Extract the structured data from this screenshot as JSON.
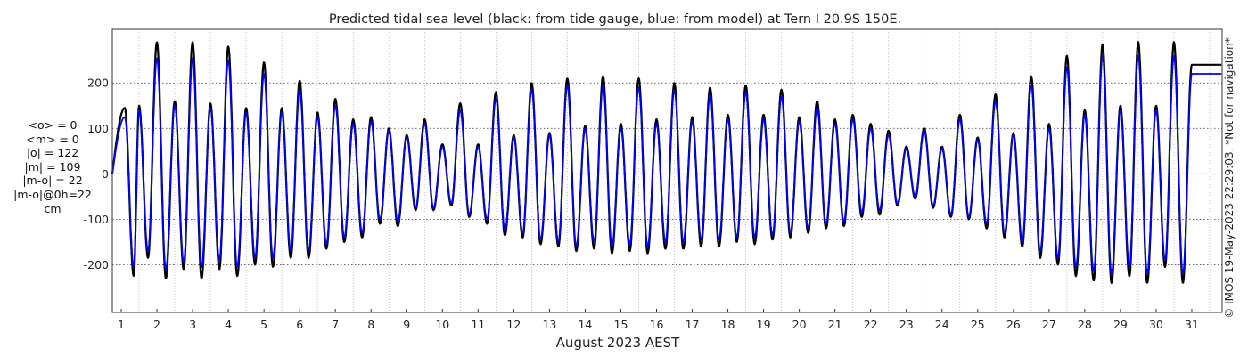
{
  "chart_data": {
    "type": "line",
    "title": "Predicted tidal sea level (black: from tide gauge, blue: from model) at Tern I 20.9S 150E.",
    "xlabel": "August 2023 AEST",
    "ylabel": "",
    "units": "cm",
    "xlim": [
      0.25,
      31.35
    ],
    "ylim": [
      -305,
      318
    ],
    "x_ticks": [
      "1",
      "2",
      "3",
      "4",
      "5",
      "6",
      "7",
      "8",
      "9",
      "10",
      "11",
      "12",
      "13",
      "14",
      "15",
      "16",
      "17",
      "18",
      "19",
      "20",
      "21",
      "22",
      "23",
      "24",
      "25",
      "26",
      "27",
      "28",
      "29",
      "30",
      "31"
    ],
    "y_ticks": [
      -200,
      -100,
      0,
      100,
      200
    ],
    "grid": true,
    "series": [
      {
        "name": "from tide gauge",
        "color": "#000000",
        "daily_extremes": [
          {
            "day": 0.6,
            "high": 145,
            "low": -225
          },
          {
            "day": 1.0,
            "high": 150,
            "low": -185
          },
          {
            "day": 1.5,
            "high": 290,
            "low": -230
          },
          {
            "day": 2.0,
            "high": 160,
            "low": -210
          },
          {
            "day": 2.5,
            "high": 290,
            "low": -230
          },
          {
            "day": 3.0,
            "high": 155,
            "low": -210
          },
          {
            "day": 3.5,
            "high": 280,
            "low": -225
          },
          {
            "day": 4.0,
            "high": 145,
            "low": -200
          },
          {
            "day": 4.5,
            "high": 245,
            "low": -205
          },
          {
            "day": 5.0,
            "high": 145,
            "low": -185
          },
          {
            "day": 5.5,
            "high": 205,
            "low": -185
          },
          {
            "day": 6.0,
            "high": 135,
            "low": -165
          },
          {
            "day": 6.5,
            "high": 165,
            "low": -150
          },
          {
            "day": 7.0,
            "high": 120,
            "low": -140
          },
          {
            "day": 7.5,
            "high": 125,
            "low": -110
          },
          {
            "day": 8.0,
            "high": 100,
            "low": -115
          },
          {
            "day": 8.5,
            "high": 85,
            "low": -80
          },
          {
            "day": 9.0,
            "high": 120,
            "low": -80
          },
          {
            "day": 9.5,
            "high": 65,
            "low": -70
          },
          {
            "day": 10.0,
            "high": 155,
            "low": -95
          },
          {
            "day": 10.5,
            "high": 65,
            "low": -110
          },
          {
            "day": 11.0,
            "high": 180,
            "low": -135
          },
          {
            "day": 11.5,
            "high": 85,
            "low": -140
          },
          {
            "day": 12.0,
            "high": 200,
            "low": -155
          },
          {
            "day": 12.5,
            "high": 90,
            "low": -160
          },
          {
            "day": 13.0,
            "high": 210,
            "low": -170
          },
          {
            "day": 13.5,
            "high": 105,
            "low": -165
          },
          {
            "day": 14.0,
            "high": 215,
            "low": -175
          },
          {
            "day": 14.5,
            "high": 110,
            "low": -170
          },
          {
            "day": 15.0,
            "high": 210,
            "low": -175
          },
          {
            "day": 15.5,
            "high": 120,
            "low": -165
          },
          {
            "day": 16.0,
            "high": 200,
            "low": -165
          },
          {
            "day": 16.5,
            "high": 125,
            "low": -160
          },
          {
            "day": 17.0,
            "high": 190,
            "low": -160
          },
          {
            "day": 17.5,
            "high": 130,
            "low": -150
          },
          {
            "day": 18.0,
            "high": 195,
            "low": -155
          },
          {
            "day": 18.5,
            "high": 130,
            "low": -145
          },
          {
            "day": 19.0,
            "high": 185,
            "low": -140
          },
          {
            "day": 19.5,
            "high": 125,
            "low": -130
          },
          {
            "day": 20.0,
            "high": 160,
            "low": -120
          },
          {
            "day": 20.5,
            "high": 120,
            "low": -115
          },
          {
            "day": 21.0,
            "high": 130,
            "low": -95
          },
          {
            "day": 21.5,
            "high": 110,
            "low": -90
          },
          {
            "day": 22.0,
            "high": 95,
            "low": -70
          },
          {
            "day": 22.5,
            "high": 60,
            "low": -55
          },
          {
            "day": 23.0,
            "high": 100,
            "low": -75
          },
          {
            "day": 23.5,
            "high": 60,
            "low": -95
          },
          {
            "day": 24.0,
            "high": 130,
            "low": -100
          },
          {
            "day": 24.5,
            "high": 80,
            "low": -120
          },
          {
            "day": 25.0,
            "high": 175,
            "low": -140
          },
          {
            "day": 25.5,
            "high": 90,
            "low": -160
          },
          {
            "day": 26.0,
            "high": 215,
            "low": -185
          },
          {
            "day": 26.5,
            "high": 110,
            "low": -200
          },
          {
            "day": 27.0,
            "high": 260,
            "low": -225
          },
          {
            "day": 27.5,
            "high": 140,
            "low": -235
          },
          {
            "day": 28.0,
            "high": 285,
            "low": -240
          },
          {
            "day": 28.5,
            "high": 150,
            "low": -225
          },
          {
            "day": 29.0,
            "high": 290,
            "low": -240
          },
          {
            "day": 29.5,
            "high": 150,
            "low": -205
          },
          {
            "day": 30.0,
            "high": 290,
            "low": -240
          }
        ]
      },
      {
        "name": "from model",
        "color": "#0000ee",
        "daily_extremes": [
          {
            "day": 0.6,
            "high": 125,
            "low": -205
          },
          {
            "day": 1.0,
            "high": 140,
            "low": -170
          },
          {
            "day": 1.5,
            "high": 255,
            "low": -210
          },
          {
            "day": 2.0,
            "high": 150,
            "low": -195
          },
          {
            "day": 2.5,
            "high": 255,
            "low": -205
          },
          {
            "day": 3.0,
            "high": 145,
            "low": -190
          },
          {
            "day": 3.5,
            "high": 250,
            "low": -205
          },
          {
            "day": 4.0,
            "high": 135,
            "low": -185
          },
          {
            "day": 4.5,
            "high": 220,
            "low": -185
          },
          {
            "day": 5.0,
            "high": 135,
            "low": -170
          },
          {
            "day": 5.5,
            "high": 185,
            "low": -170
          },
          {
            "day": 6.0,
            "high": 125,
            "low": -155
          },
          {
            "day": 6.5,
            "high": 150,
            "low": -140
          },
          {
            "day": 7.0,
            "high": 110,
            "low": -130
          },
          {
            "day": 7.5,
            "high": 115,
            "low": -100
          },
          {
            "day": 8.0,
            "high": 95,
            "low": -105
          },
          {
            "day": 8.5,
            "high": 80,
            "low": -75
          },
          {
            "day": 9.0,
            "high": 110,
            "low": -75
          },
          {
            "day": 9.5,
            "high": 60,
            "low": -65
          },
          {
            "day": 10.0,
            "high": 140,
            "low": -90
          },
          {
            "day": 10.5,
            "high": 60,
            "low": -100
          },
          {
            "day": 11.0,
            "high": 165,
            "low": -125
          },
          {
            "day": 11.5,
            "high": 80,
            "low": -130
          },
          {
            "day": 12.0,
            "high": 185,
            "low": -145
          },
          {
            "day": 12.5,
            "high": 85,
            "low": -150
          },
          {
            "day": 13.0,
            "high": 195,
            "low": -160
          },
          {
            "day": 13.5,
            "high": 100,
            "low": -150
          },
          {
            "day": 14.0,
            "high": 195,
            "low": -160
          },
          {
            "day": 14.5,
            "high": 100,
            "low": -155
          },
          {
            "day": 15.0,
            "high": 190,
            "low": -160
          },
          {
            "day": 15.5,
            "high": 110,
            "low": -150
          },
          {
            "day": 16.0,
            "high": 185,
            "low": -150
          },
          {
            "day": 16.5,
            "high": 115,
            "low": -145
          },
          {
            "day": 17.0,
            "high": 175,
            "low": -145
          },
          {
            "day": 17.5,
            "high": 120,
            "low": -140
          },
          {
            "day": 18.0,
            "high": 180,
            "low": -140
          },
          {
            "day": 18.5,
            "high": 120,
            "low": -135
          },
          {
            "day": 19.0,
            "high": 170,
            "low": -130
          },
          {
            "day": 19.5,
            "high": 115,
            "low": -120
          },
          {
            "day": 20.0,
            "high": 145,
            "low": -110
          },
          {
            "day": 20.5,
            "high": 110,
            "low": -105
          },
          {
            "day": 21.0,
            "high": 120,
            "low": -85
          },
          {
            "day": 21.5,
            "high": 100,
            "low": -80
          },
          {
            "day": 22.0,
            "high": 85,
            "low": -65
          },
          {
            "day": 22.5,
            "high": 55,
            "low": -50
          },
          {
            "day": 23.0,
            "high": 95,
            "low": -70
          },
          {
            "day": 23.5,
            "high": 55,
            "low": -90
          },
          {
            "day": 24.0,
            "high": 120,
            "low": -95
          },
          {
            "day": 24.5,
            "high": 75,
            "low": -110
          },
          {
            "day": 25.0,
            "high": 160,
            "low": -130
          },
          {
            "day": 25.5,
            "high": 85,
            "low": -150
          },
          {
            "day": 26.0,
            "high": 195,
            "low": -170
          },
          {
            "day": 26.5,
            "high": 100,
            "low": -185
          },
          {
            "day": 27.0,
            "high": 235,
            "low": -205
          },
          {
            "day": 27.5,
            "high": 130,
            "low": -215
          },
          {
            "day": 28.0,
            "high": 260,
            "low": -220
          },
          {
            "day": 28.5,
            "high": 140,
            "low": -205
          },
          {
            "day": 29.0,
            "high": 260,
            "low": -220
          },
          {
            "day": 29.5,
            "high": 140,
            "low": -190
          },
          {
            "day": 30.0,
            "high": 260,
            "low": -220
          }
        ]
      }
    ]
  },
  "stats": [
    "<o> = 0",
    "<m> = 0",
    "|o| = 122",
    "|m| = 109",
    "|m-o| = 22",
    "|m-o|@0h=22",
    "cm"
  ],
  "side_note": "© IMOS 19-May-2023 22:29:03. *Not for navigation*"
}
